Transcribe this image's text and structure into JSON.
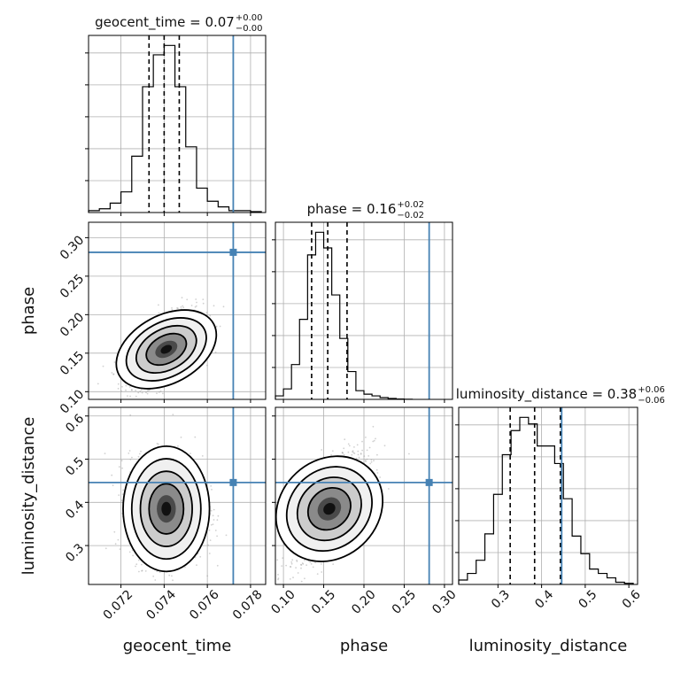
{
  "chart_data": [
    {
      "type": "histogram",
      "parameter": "geocent_time",
      "title": "geocent_time = 0.07",
      "title_sup": "+0.00",
      "title_sub": "−0.00",
      "xlim": [
        0.0705,
        0.0787
      ],
      "bin_edges": [
        0.0705,
        0.071,
        0.0715,
        0.072,
        0.0725,
        0.073,
        0.0735,
        0.074,
        0.0745,
        0.075,
        0.0755,
        0.076,
        0.0765,
        0.077,
        0.0775,
        0.078,
        0.0785
      ],
      "counts": [
        0.01,
        0.02,
        0.05,
        0.11,
        0.3,
        0.67,
        0.84,
        0.89,
        0.67,
        0.35,
        0.13,
        0.06,
        0.03,
        0.01,
        0.01,
        0.005
      ],
      "quantiles": [
        0.0733,
        0.074,
        0.0747
      ],
      "truth": 0.0772,
      "grid": true
    },
    {
      "type": "histogram",
      "parameter": "phase",
      "title": "phase = 0.16",
      "title_sup": "+0.02",
      "title_sub": "−0.02",
      "xlim": [
        0.09,
        0.31
      ],
      "bin_edges": [
        0.09,
        0.1,
        0.11,
        0.12,
        0.13,
        0.14,
        0.15,
        0.16,
        0.17,
        0.18,
        0.19,
        0.2,
        0.21,
        0.22,
        0.23,
        0.24,
        0.25,
        0.26
      ],
      "counts": [
        0.02,
        0.06,
        0.2,
        0.46,
        0.83,
        0.96,
        0.87,
        0.6,
        0.35,
        0.16,
        0.05,
        0.03,
        0.02,
        0.01,
        0.005,
        0.002,
        0.001
      ],
      "quantiles": [
        0.135,
        0.155,
        0.179
      ],
      "truth": 0.281,
      "grid": true
    },
    {
      "type": "histogram",
      "parameter": "luminosity_distance",
      "title": "luminosity_distance = 0.38",
      "title_sup": "+0.06",
      "title_sub": "−0.06",
      "xlim": [
        0.21,
        0.62
      ],
      "bin_edges": [
        0.21,
        0.23,
        0.25,
        0.27,
        0.29,
        0.31,
        0.33,
        0.35,
        0.37,
        0.39,
        0.41,
        0.43,
        0.45,
        0.47,
        0.49,
        0.51,
        0.53,
        0.55,
        0.57,
        0.59,
        0.61
      ],
      "counts": [
        0.02,
        0.05,
        0.11,
        0.23,
        0.41,
        0.59,
        0.7,
        0.76,
        0.73,
        0.63,
        0.63,
        0.55,
        0.39,
        0.22,
        0.14,
        0.07,
        0.05,
        0.03,
        0.01,
        0.005
      ],
      "quantiles": [
        0.328,
        0.384,
        0.443
      ],
      "truth": 0.446,
      "grid": true
    },
    {
      "type": "scatter_density",
      "x_param": "geocent_time",
      "y_param": "phase",
      "xlim": [
        0.0705,
        0.0787
      ],
      "ylim": [
        0.09,
        0.32
      ],
      "center": [
        0.0741,
        0.155
      ],
      "spread": [
        0.0008,
        0.022
      ],
      "correlation": 0.55,
      "truth": [
        0.0772,
        0.281
      ],
      "grid": true
    },
    {
      "type": "scatter_density",
      "x_param": "geocent_time",
      "y_param": "luminosity_distance",
      "xlim": [
        0.0705,
        0.0787
      ],
      "ylim": [
        0.21,
        0.62
      ],
      "center": [
        0.0741,
        0.385
      ],
      "spread": [
        0.0008,
        0.058
      ],
      "correlation": 0.0,
      "truth": [
        0.0772,
        0.446
      ],
      "grid": true
    },
    {
      "type": "scatter_density",
      "x_param": "phase",
      "y_param": "luminosity_distance",
      "xlim": [
        0.09,
        0.31
      ],
      "ylim": [
        0.21,
        0.62
      ],
      "center": [
        0.157,
        0.385
      ],
      "spread": [
        0.022,
        0.058
      ],
      "correlation": 0.65,
      "truth": [
        0.281,
        0.446
      ],
      "grid": true
    }
  ],
  "axes": {
    "x_labels": [
      "geocent_time",
      "phase",
      "luminosity_distance"
    ],
    "y_labels": [
      "phase",
      "luminosity_distance"
    ],
    "x_ticks": {
      "geocent_time": [
        "0.072",
        "0.074",
        "0.076",
        "0.078"
      ],
      "phase": [
        "0.10",
        "0.15",
        "0.20",
        "0.25",
        "0.30"
      ],
      "luminosity_distance": [
        "0.3",
        "0.4",
        "0.5",
        "0.6"
      ]
    },
    "y_ticks": {
      "phase": [
        "0.10",
        "0.15",
        "0.20",
        "0.25",
        "0.30"
      ],
      "luminosity_distance": [
        "0.3",
        "0.4",
        "0.5",
        "0.6"
      ]
    }
  },
  "colors": {
    "truth": "#4682b4",
    "hist": "#000000",
    "grid": "#b0b0b0",
    "points": "#9a9a9a"
  }
}
